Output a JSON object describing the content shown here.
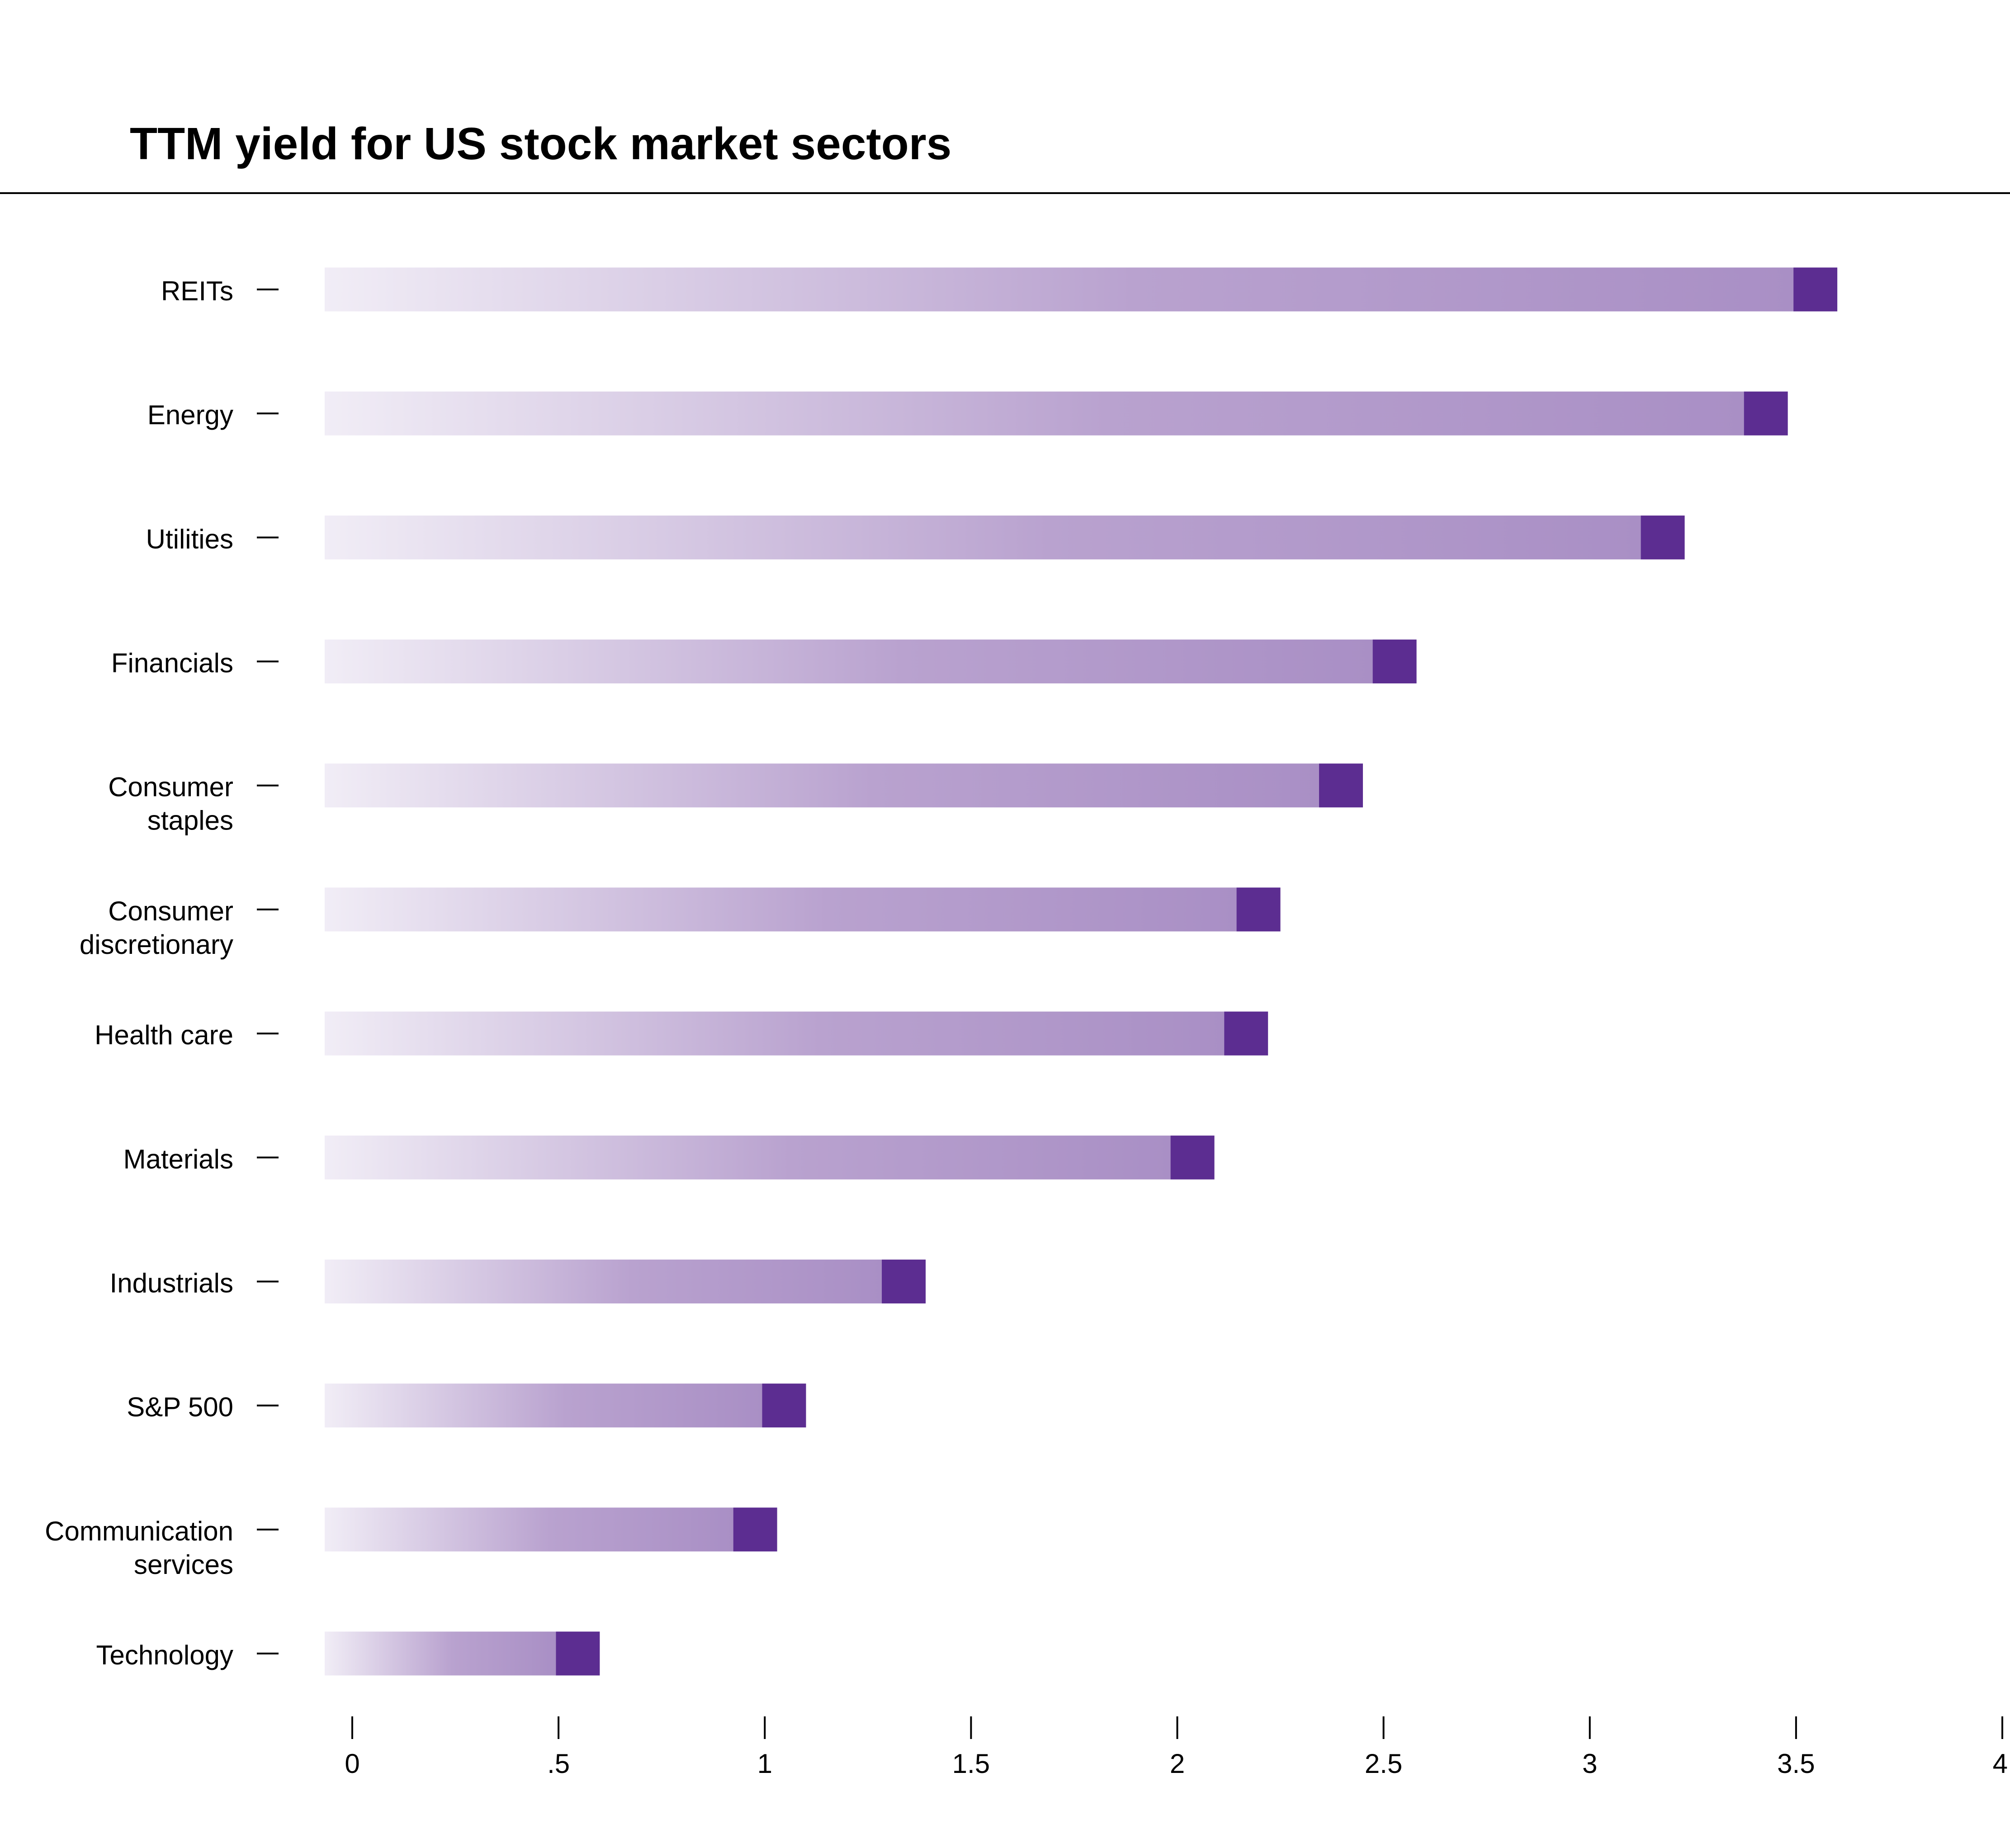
{
  "chart_data": {
    "type": "bar",
    "orientation": "horizontal",
    "title": "TTM yield for US stock market sectors",
    "xlabel": "",
    "ylabel": "",
    "xlim": [
      0,
      4
    ],
    "x_ticks": [
      {
        "value": 0,
        "label": "0"
      },
      {
        "value": 0.5,
        "label": ".5"
      },
      {
        "value": 1,
        "label": "1"
      },
      {
        "value": 1.5,
        "label": "1.5"
      },
      {
        "value": 2,
        "label": "2"
      },
      {
        "value": 2.5,
        "label": "2.5"
      },
      {
        "value": 3,
        "label": "3"
      },
      {
        "value": 3.5,
        "label": "3.5"
      },
      {
        "value": 4,
        "label": "4"
      }
    ],
    "categories": [
      {
        "label": [
          "REITs"
        ],
        "value": 3.6
      },
      {
        "label": [
          "Energy"
        ],
        "value": 3.48
      },
      {
        "label": [
          "Utilities"
        ],
        "value": 3.23
      },
      {
        "label": [
          "Financials"
        ],
        "value": 2.58
      },
      {
        "label": [
          "Consumer",
          "staples"
        ],
        "value": 2.45
      },
      {
        "label": [
          "Consumer",
          "discretionary"
        ],
        "value": 2.25
      },
      {
        "label": [
          "Health care"
        ],
        "value": 2.22
      },
      {
        "label": [
          "Materials"
        ],
        "value": 2.09
      },
      {
        "label": [
          "Industrials"
        ],
        "value": 1.39
      },
      {
        "label": [
          "S&P 500"
        ],
        "value": 1.1
      },
      {
        "label": [
          "Communication",
          "services"
        ],
        "value": 1.03
      },
      {
        "label": [
          "Technology"
        ],
        "value": 0.6
      }
    ],
    "grid": false,
    "colors": {
      "bar_gradient_start": "#f1edf6",
      "bar_gradient_end": "#a98fc5",
      "bar_cap": "#5c2d91",
      "text": "#000000",
      "rule": "#000000"
    }
  }
}
